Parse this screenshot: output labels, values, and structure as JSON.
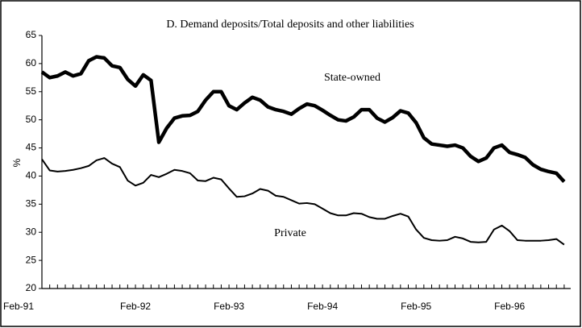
{
  "chart_data": {
    "type": "line",
    "title": "D. Demand deposits/Total deposits and other liabilities",
    "y_label": "%",
    "categories": [
      "Feb-91",
      null,
      null,
      null,
      null,
      null,
      null,
      null,
      null,
      null,
      null,
      null,
      "Feb-92",
      null,
      null,
      null,
      null,
      null,
      null,
      null,
      null,
      null,
      null,
      null,
      "Feb-93",
      null,
      null,
      null,
      null,
      null,
      null,
      null,
      null,
      null,
      null,
      null,
      "Feb-94",
      null,
      null,
      null,
      null,
      null,
      null,
      null,
      null,
      null,
      null,
      null,
      "Feb-95",
      null,
      null,
      null,
      null,
      null,
      null,
      null,
      null,
      null,
      null,
      null,
      "Feb-96",
      null,
      null,
      null,
      null,
      null,
      null,
      null
    ],
    "series": [
      {
        "name": "State-owned",
        "color": "#000000",
        "values": [
          58.5,
          57.5,
          57.8,
          58.5,
          57.8,
          58.2,
          60.5,
          61.2,
          61,
          59.6,
          59.3,
          57.2,
          56,
          58,
          57,
          46,
          48.5,
          50.3,
          50.7,
          50.8,
          51.5,
          53.5,
          55,
          55,
          52.5,
          51.8,
          53,
          54,
          53.5,
          52.3,
          51.8,
          51.5,
          51,
          52,
          52.8,
          52.5,
          51.7,
          50.8,
          50,
          49.8,
          50.5,
          51.8,
          51.8,
          50.3,
          49.6,
          50.4,
          51.6,
          51.2,
          49.5,
          46.8,
          45.7,
          45.5,
          45.3,
          45.5,
          45,
          43.5,
          42.6,
          43.2,
          45,
          45.5,
          44.2,
          43.8,
          43.3,
          42,
          41.2,
          40.8,
          40.5,
          39
        ]
      },
      {
        "name": "Private",
        "color": "#000000",
        "values": [
          43,
          41,
          40.8,
          40.9,
          41.1,
          41.4,
          41.8,
          42.8,
          43.2,
          42.2,
          41.6,
          39.2,
          38.3,
          38.8,
          40.2,
          39.8,
          40.4,
          41.1,
          40.9,
          40.5,
          39.2,
          39.1,
          39.7,
          39.4,
          37.8,
          36.3,
          36.4,
          36.9,
          37.7,
          37.4,
          36.5,
          36.3,
          35.7,
          35.1,
          35.2,
          35,
          34.2,
          33.4,
          33,
          33,
          33.4,
          33.3,
          32.7,
          32.4,
          32.4,
          32.9,
          33.3,
          32.8,
          30.5,
          29,
          28.6,
          28.5,
          28.6,
          29.2,
          28.9,
          28.3,
          28.2,
          28.3,
          30.5,
          31.2,
          30.2,
          28.6,
          28.5,
          28.5,
          28.5,
          28.6,
          28.8,
          27.8
        ]
      }
    ],
    "ylim": [
      20,
      65
    ],
    "yticks": [
      20,
      25,
      30,
      35,
      40,
      45,
      50,
      55,
      60,
      65
    ],
    "grid": false
  }
}
